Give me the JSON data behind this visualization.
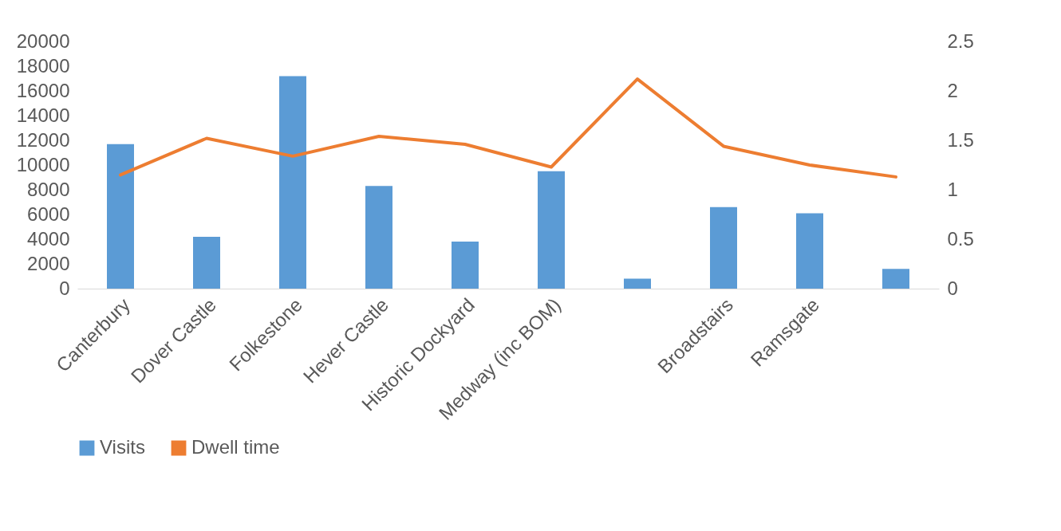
{
  "chart_data": {
    "type": "bar",
    "categories": [
      "Canterbury",
      "Dover Castle",
      "Folkestone",
      "Hever Castle",
      "Historic Dockyard",
      "Medway (inc BOM)",
      null,
      "Broadstairs",
      "Ramsgate",
      null
    ],
    "series": [
      {
        "name": "Visits",
        "color": "#5b9bd5",
        "values": [
          11700,
          4200,
          17200,
          8300,
          3800,
          9500,
          800,
          6600,
          6100,
          1600
        ]
      },
      {
        "name": "Dwell time",
        "type": "line",
        "axis": "y2",
        "color": "#ed7d31",
        "values": [
          1.15,
          1.52,
          1.34,
          1.54,
          1.46,
          1.23,
          2.12,
          1.44,
          1.25,
          1.13
        ]
      }
    ],
    "ylim": [
      0,
      20000
    ],
    "yticks": [
      0,
      2000,
      4000,
      6000,
      8000,
      10000,
      12000,
      14000,
      16000,
      18000,
      20000
    ],
    "y2lim": [
      0,
      2.5
    ],
    "y2ticks": [
      0,
      0.5,
      1,
      1.5,
      2,
      2.5
    ],
    "legend": "bottom"
  }
}
